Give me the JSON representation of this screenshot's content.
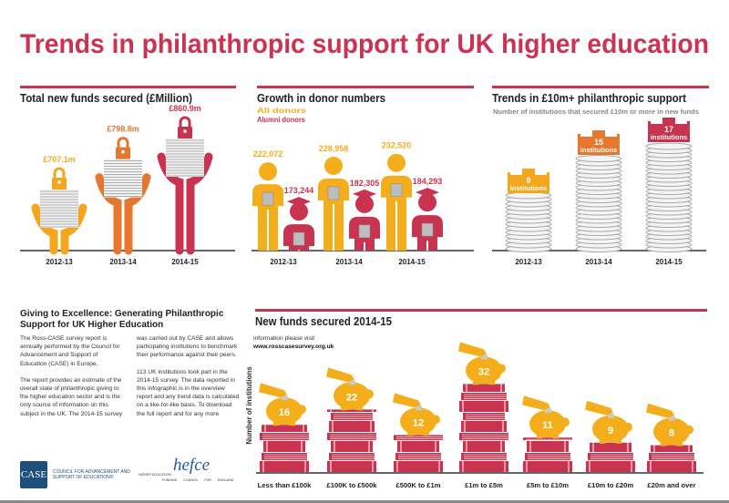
{
  "title": "Trends in philanthropic support for UK higher education",
  "colors": {
    "title_red": "#cc3352",
    "year1": "#f4a71d",
    "year2": "#e6772e",
    "year3": "#c8334f",
    "all_donors": "#f4ae1b",
    "alumni_donors": "#c8334f",
    "book_red": "#c8334f",
    "piggy_yellow": "#f4ae1b",
    "text_dark": "#222222"
  },
  "chart_data": [
    {
      "type": "bar",
      "title": "Total new funds secured (£Million)",
      "categories": [
        "2012-13",
        "2013-14",
        "2014-15"
      ],
      "values": [
        707.1,
        798.8,
        860.9
      ],
      "data_labels": [
        "£707.1m",
        "£798.8m",
        "£860.9m"
      ],
      "icons": [
        "lock-icon",
        "paper-stack-icon",
        "hands-icon"
      ]
    },
    {
      "type": "bar",
      "title": "Growth in donor numbers",
      "categories": [
        "2012-13",
        "2013-14",
        "2014-15"
      ],
      "legend": "top-left",
      "series": [
        {
          "name": "All donors",
          "values": [
            222072,
            228958,
            232520
          ],
          "data_labels": [
            "222,072",
            "228,958",
            "232,520"
          ]
        },
        {
          "name": "Alumni donors",
          "values": [
            173244,
            182305,
            184293
          ],
          "data_labels": [
            "173,244",
            "182,305",
            "184,293"
          ]
        }
      ],
      "icons": [
        "person-icon",
        "graduate-icon"
      ]
    },
    {
      "type": "bar",
      "title": "Trends in £10m+ philanthropic support",
      "subtitle": "Number of institutions that secured £10m or more in new funds",
      "categories": [
        "2012-13",
        "2013-14",
        "2014-15"
      ],
      "values": [
        9,
        15,
        17
      ],
      "data_labels": [
        "9",
        "15",
        "17"
      ],
      "unit_label": "institutions",
      "icons": [
        "coin-stack-icon",
        "castle-icon"
      ]
    },
    {
      "type": "bar",
      "title": "New funds secured 2014-15",
      "ylabel": "Number of institutions",
      "categories": [
        "Less than £100k",
        "£100K to £500k",
        "£500K to £1m",
        "£1m to £5m",
        "£5m to £10m",
        "£10m to £20m",
        "£20m and over"
      ],
      "values": [
        16,
        22,
        12,
        32,
        11,
        9,
        8
      ],
      "data_labels": [
        "16",
        "22",
        "12",
        "32",
        "11",
        "9",
        "8"
      ],
      "icons": [
        "book-stack-icon",
        "piggy-bank-icon",
        "hand-coin-icon"
      ]
    }
  ],
  "about": {
    "heading": "Giving to Excellence: Generating Philanthropic Support for UK Higher Education",
    "p1": "The Ross-CASE survey report is annually performed by the Council for Advancement and Support of Education (CASE) in Europe.",
    "p2": "The report provides an estimate of the overall state of philanthropic giving to the higher education sector and is the only source of information on this subject in the UK. The 2014-15 survey was carried out by CASE and allows participating institutions to benchmark their performance against their peers.",
    "p3": "113 UK institutions took part in the 2014-15 survey. The data reported in this infographic is in the overview report and any trend data is calculated on a like-for-like basis. To download the full report and for any more information please visit",
    "link": "www.rosscasesurvey.org.uk"
  },
  "logos": {
    "case_mark": "CASE",
    "case_text": "COUNCIL FOR ADVANCEMENT AND SUPPORT OF EDUCATION®",
    "hefce_mark": "hefce",
    "hefce_text_a": "HIGHER EDUCATION",
    "hefce_text_b": "FUNDING COUNCIL FOR ENGLAND"
  }
}
